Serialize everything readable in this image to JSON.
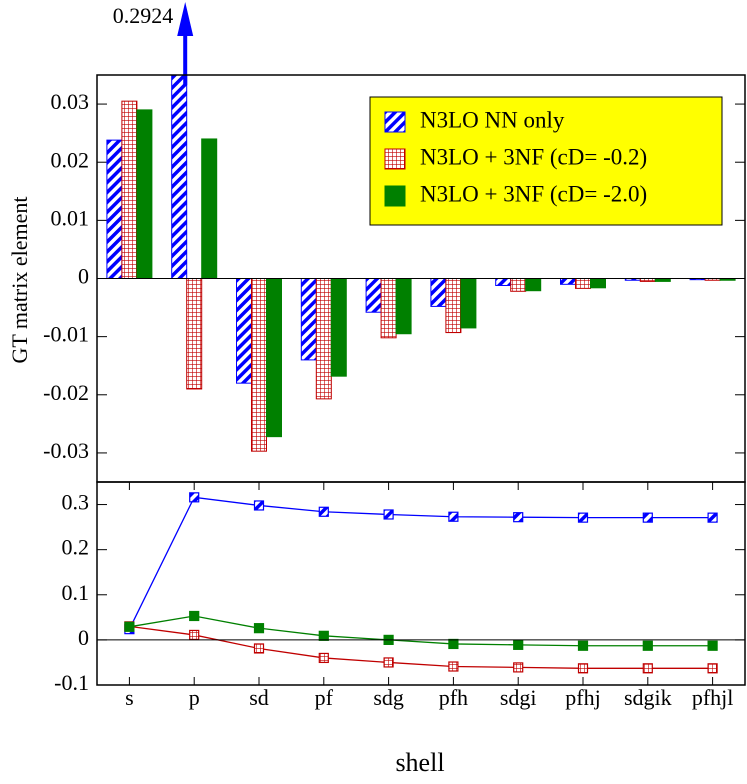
{
  "chart_data": [
    {
      "type": "bar",
      "y_label": "GT matrix element",
      "ylim": [
        -0.035,
        0.035
      ],
      "yticks": [
        0.03,
        0.02,
        0.01,
        0,
        -0.01,
        -0.02,
        -0.03
      ],
      "legend": "upper right",
      "series": [
        {
          "name": "N3LO NN only",
          "color": "#0000ff",
          "pattern": "hatch",
          "values": [
            0.0238,
            0.2924,
            -0.018,
            -0.014,
            -0.0058,
            -0.0048,
            -0.0012,
            -0.001,
            -0.0003,
            -0.0002
          ],
          "value_labels": [
            null,
            "0.2924",
            null,
            null,
            null,
            null,
            null,
            null,
            null,
            null
          ]
        },
        {
          "name": "N3LO + 3NF (cD= -0.2)",
          "color": "#c00000",
          "pattern": "check",
          "values": [
            0.0305,
            -0.019,
            -0.0297,
            -0.0207,
            -0.0102,
            -0.0093,
            -0.0022,
            -0.0017,
            -0.0005,
            -0.0003
          ]
        },
        {
          "name": "N3LO + 3NF (cD= -2.0)",
          "color": "#008000",
          "pattern": "solid",
          "values": [
            0.029,
            0.024,
            -0.0272,
            -0.0168,
            -0.0095,
            -0.0085,
            -0.0021,
            -0.0016,
            -0.0005,
            -0.0003
          ]
        }
      ]
    },
    {
      "type": "line",
      "x_label": "shell",
      "categories": [
        "s",
        "p",
        "sd",
        "pf",
        "sdg",
        "pfh",
        "sdgi",
        "pfhj",
        "sdgik",
        "pfhjl"
      ],
      "ylim": [
        -0.1,
        0.35
      ],
      "yticks": [
        0.3,
        0.2,
        0.1,
        0,
        -0.1
      ],
      "series": [
        {
          "color": "#0000ff",
          "pattern": "hatch",
          "values": [
            0.0238,
            0.316,
            0.298,
            0.284,
            0.278,
            0.273,
            0.272,
            0.271,
            0.271,
            0.271
          ]
        },
        {
          "color": "#c00000",
          "pattern": "check",
          "values": [
            0.03,
            0.011,
            -0.019,
            -0.04,
            -0.05,
            -0.059,
            -0.061,
            -0.063,
            -0.063,
            -0.063
          ]
        },
        {
          "color": "#008000",
          "pattern": "solid",
          "values": [
            0.029,
            0.053,
            0.026,
            0.009,
            0.0,
            -0.009,
            -0.011,
            -0.013,
            -0.013,
            -0.013
          ]
        }
      ]
    }
  ]
}
